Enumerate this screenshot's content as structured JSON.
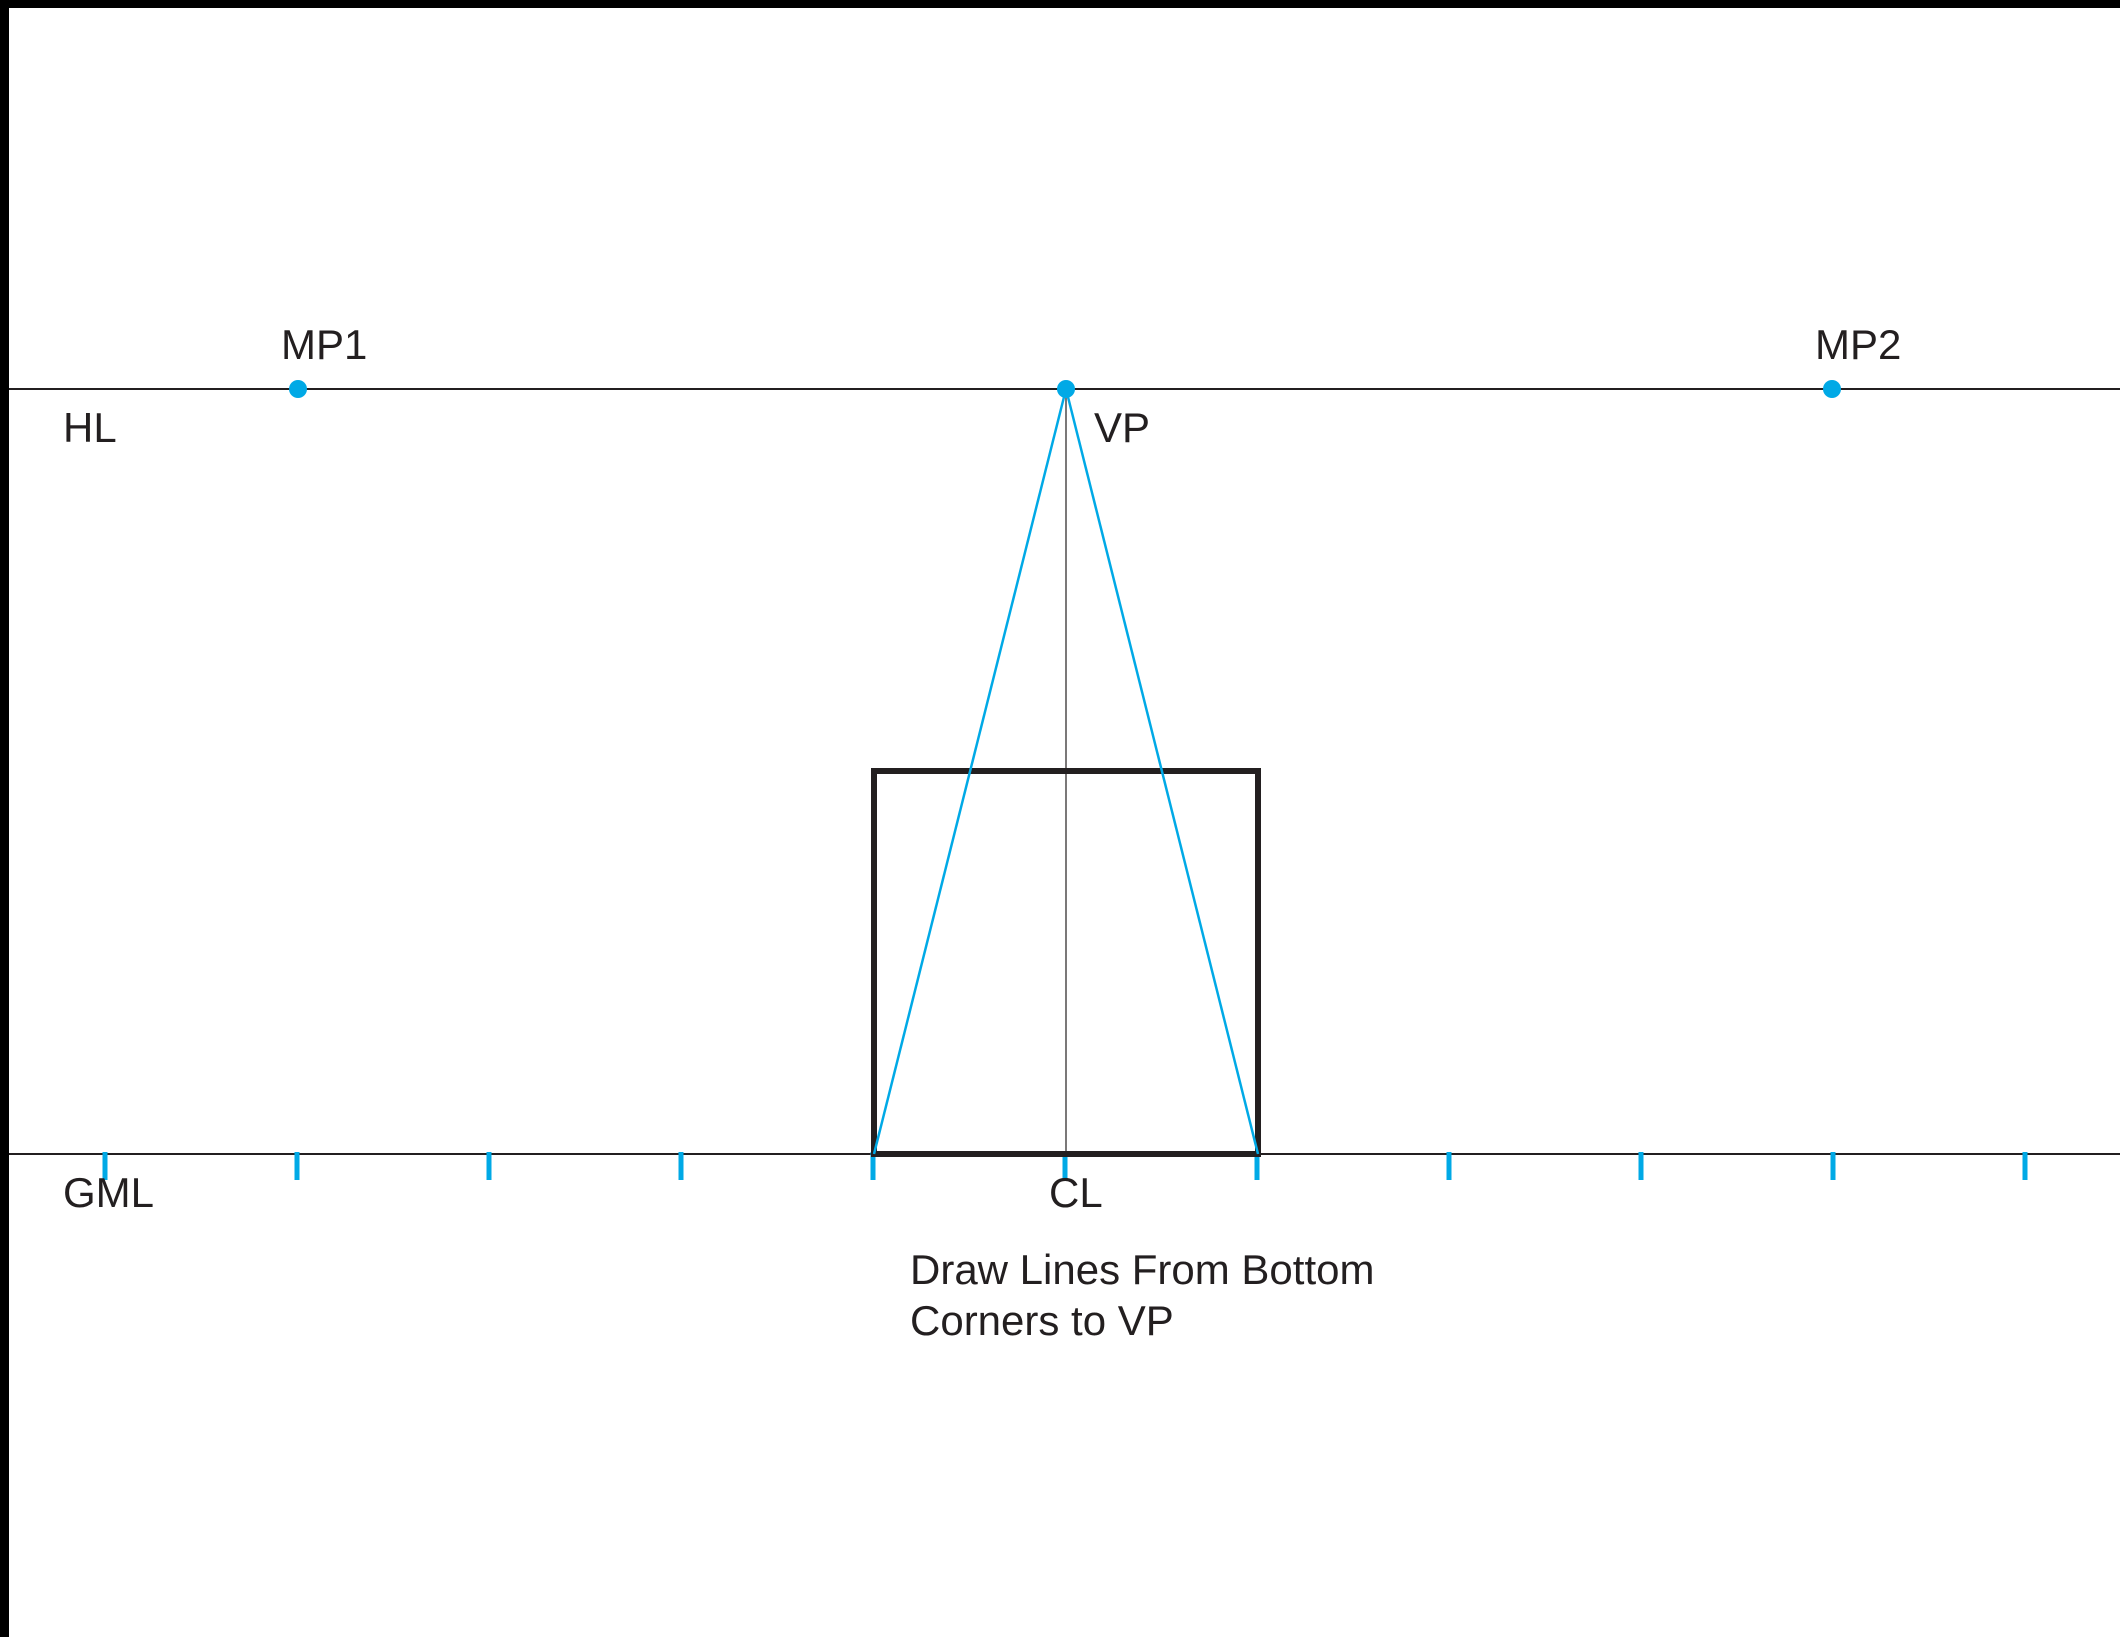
{
  "colors": {
    "ink": "#231f20",
    "accent": "#00a9e6",
    "frame": "#000000",
    "background": "#ffffff"
  },
  "labels": {
    "horizon": "HL",
    "ground": "GML",
    "center": "CL",
    "vanishing_point": "VP",
    "measuring_point_1": "MP1",
    "measuring_point_2": "MP2"
  },
  "caption": {
    "line1": "Draw Lines From Bottom",
    "line2": "Corners to VP"
  },
  "ground_ticks": {
    "count": 11
  }
}
